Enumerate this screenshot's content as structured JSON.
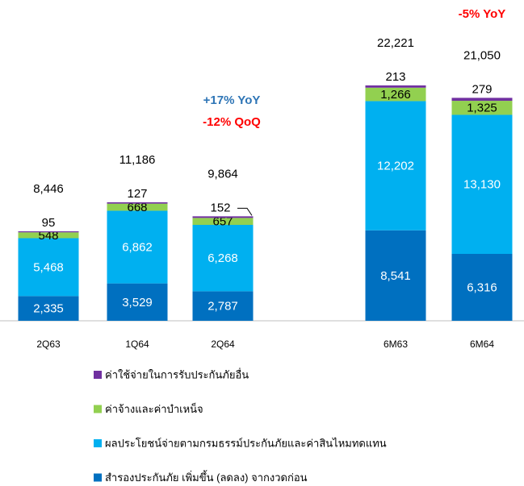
{
  "chart_data": {
    "type": "stacked-bar",
    "categories": [
      "2Q63",
      "1Q64",
      "2Q64",
      "6M63",
      "6M64"
    ],
    "series": [
      {
        "name": "สำรองประกันภัย เพิ่มขึ้น (ลดลง) จากงวดก่อน",
        "color": "#0070c0",
        "values": [
          2335,
          3529,
          2787,
          8541,
          6316
        ],
        "value_labels": [
          "2,335",
          "3,529",
          "2,787",
          "8,541",
          "6,316"
        ]
      },
      {
        "name": "ผลประโยชน์จ่ายตามกรมธรรม์ประกันภัยและค่าสินไหมทดแทน",
        "color": "#00b0f0",
        "values": [
          5468,
          6862,
          6268,
          12202,
          13130
        ],
        "value_labels": [
          "5,468",
          "6,862",
          "6,268",
          "12,202",
          "13,130"
        ]
      },
      {
        "name": "ค่าจ้างและค่าบำเหน็จ",
        "color": "#92d050",
        "values": [
          548,
          668,
          657,
          1266,
          1325
        ],
        "value_labels": [
          "548",
          "668",
          "657",
          "1,266",
          "1,325"
        ]
      },
      {
        "name": "ค่าใช้จ่ายในการรับประกันภัยอื่น",
        "color": "#7030a0",
        "values": [
          95,
          127,
          152,
          213,
          279
        ],
        "value_labels": [
          "95",
          "127",
          "152",
          "213",
          "279"
        ]
      }
    ],
    "totals": {
      "values": [
        8446,
        11186,
        9864,
        22221,
        21050
      ],
      "value_labels": [
        "8,446",
        "11,186",
        "9,864",
        "22,221",
        "21,050"
      ]
    },
    "annotations": [
      {
        "text": "+17% YoY"
      },
      {
        "text": "-12% QoQ"
      },
      {
        "text": "-5% YoY"
      }
    ]
  }
}
